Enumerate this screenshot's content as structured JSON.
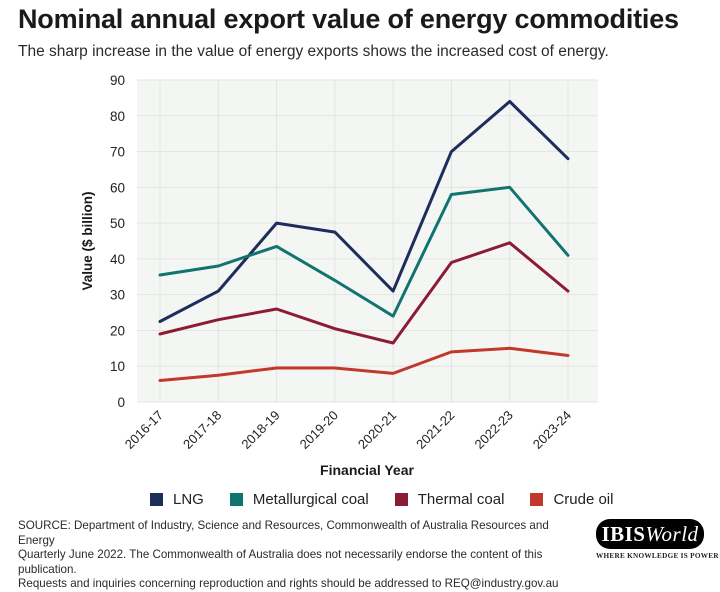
{
  "header": {
    "title": "Nominal annual export value of energy commodities",
    "subtitle": "The sharp increase in the value of energy exports shows the increased cost of energy."
  },
  "chart_data": {
    "type": "line",
    "xlabel": "Financial Year",
    "ylabel": "Value ($ billion)",
    "ylim": [
      0,
      90
    ],
    "yticks": [
      "0",
      "10",
      "20",
      "30",
      "40",
      "50",
      "60",
      "70",
      "80",
      "90"
    ],
    "grid": true,
    "legend_position": "bottom",
    "categories": [
      "2016-17",
      "2017-18",
      "2018-19",
      "2019-20",
      "2020-21",
      "2021-22",
      "2022-23",
      "2023-24"
    ],
    "series": [
      {
        "name": "LNG",
        "color": "#1f2d5c",
        "values": [
          22.5,
          31,
          50,
          47.5,
          31,
          70,
          84,
          68
        ]
      },
      {
        "name": "Metallurgical coal",
        "color": "#127470",
        "values": [
          35.5,
          38,
          43.5,
          34,
          24,
          58,
          60,
          41
        ]
      },
      {
        "name": "Thermal coal",
        "color": "#8c1c33",
        "values": [
          19,
          23,
          26,
          20.5,
          16.5,
          39,
          44.5,
          31
        ]
      },
      {
        "name": "Crude oil",
        "color": "#c0392b",
        "values": [
          6,
          7.5,
          9.5,
          9.5,
          8,
          14,
          15,
          13
        ]
      }
    ]
  },
  "footer": {
    "source_line1": "SOURCE: Department of Industry, Science and Resources, Commonwealth of Australia Resources and Energy",
    "source_line2": "Quarterly June 2022. The Commonwealth of Australia does not necessarily endorse the content of this publication.",
    "source_line3": "Requests and inquiries concerning reproduction and rights should be addressed to REQ@industry.gov.au"
  },
  "logo": {
    "brand_main": "IBIS",
    "brand_italic": "World",
    "tagline": "WHERE KNOWLEDGE IS POWER"
  }
}
